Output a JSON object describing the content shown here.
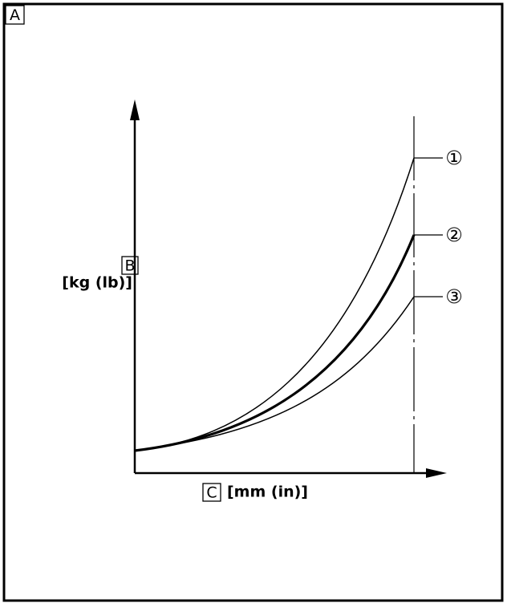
{
  "labels": {
    "a": "A",
    "b": "B",
    "y_unit": "[kg (lb)]",
    "c": "C",
    "x_unit": "[mm (in)]"
  },
  "curves": [
    {
      "label": "①"
    },
    {
      "label": "②"
    },
    {
      "label": "③"
    }
  ]
}
